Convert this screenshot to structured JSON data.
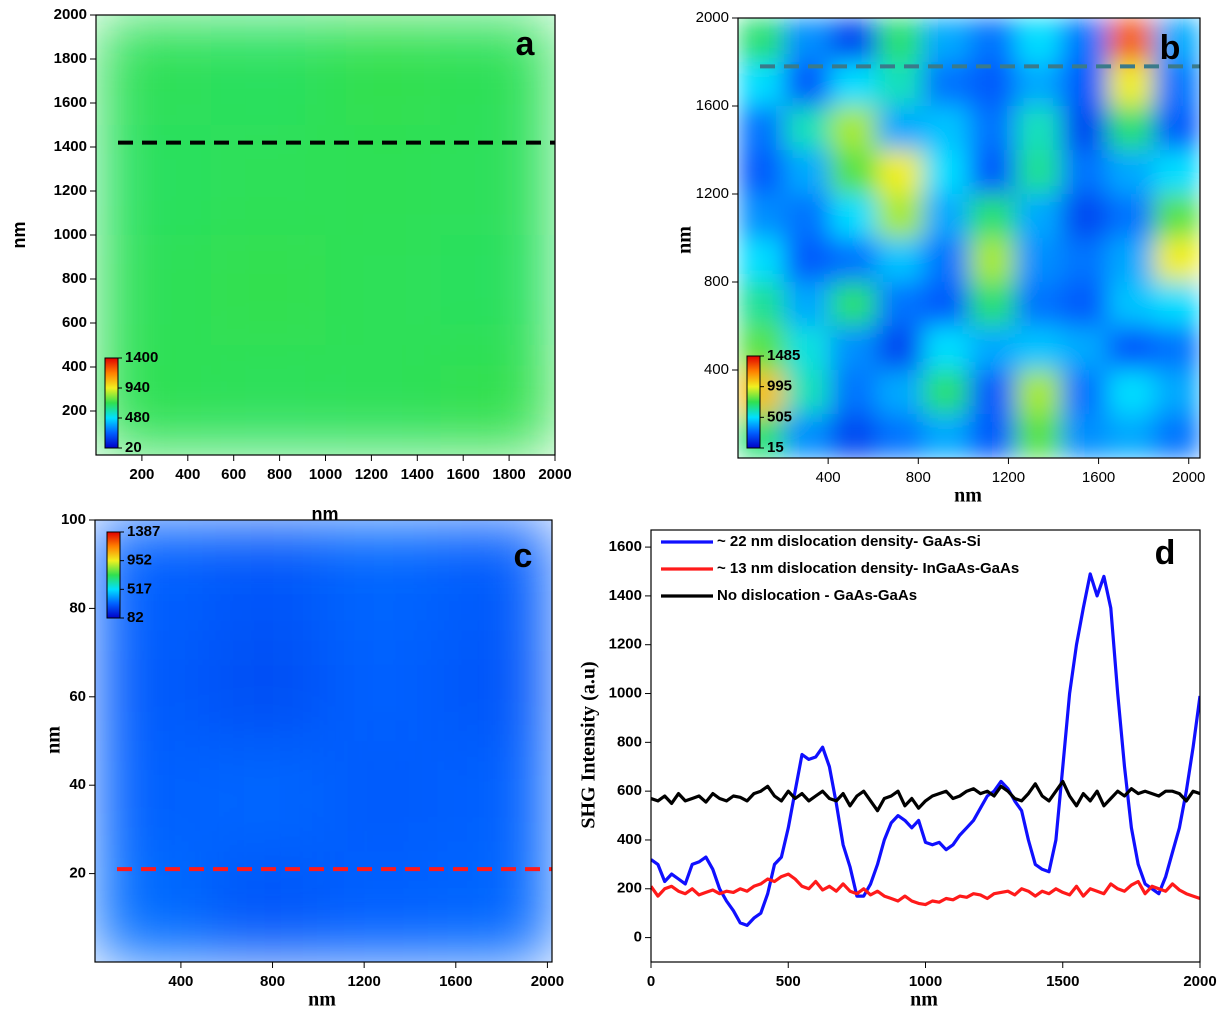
{
  "chart_data": [
    {
      "type": "heatmap",
      "label": "a",
      "xlabel": "nm",
      "ylabel": "nm",
      "xlim": [
        0,
        2000
      ],
      "ylim": [
        0,
        2000
      ],
      "xticks": [
        200,
        400,
        600,
        800,
        1000,
        1200,
        1400,
        1600,
        1800,
        2000
      ],
      "yticks": [
        200,
        400,
        600,
        800,
        1000,
        1200,
        1400,
        1600,
        1800,
        2000
      ],
      "clim": [
        20,
        1400
      ],
      "cticks": [
        20,
        480,
        940,
        1400
      ],
      "colormap": [
        "#0000c8",
        "#0060ff",
        "#00e0ff",
        "#30e050",
        "#f0f020",
        "#ff8000",
        "#e00000"
      ],
      "z": [
        [
          700,
          690,
          710,
          700
        ],
        [
          690,
          700,
          705,
          695
        ],
        [
          700,
          710,
          700,
          690
        ],
        [
          705,
          695,
          700,
          710
        ]
      ],
      "hline": {
        "y": 1420,
        "color": "#000000"
      }
    },
    {
      "type": "heatmap",
      "label": "b",
      "xlabel": "nm",
      "ylabel": "nm",
      "xlim": [
        0,
        2050
      ],
      "ylim": [
        0,
        2000
      ],
      "xticks": [
        400,
        800,
        1200,
        1600,
        2000
      ],
      "yticks": [
        400,
        800,
        1200,
        1600,
        2000
      ],
      "clim": [
        15,
        1485
      ],
      "cticks": [
        15,
        505,
        995,
        1485
      ],
      "colormap": [
        "#0000c8",
        "#0060ff",
        "#00e0ff",
        "#30e050",
        "#f0f020",
        "#ff8000",
        "#e00000"
      ],
      "z": [
        [
          700,
          350,
          200,
          700,
          400,
          300,
          500,
          300,
          1300,
          400
        ],
        [
          500,
          250,
          500,
          600,
          300,
          250,
          400,
          250,
          1000,
          300
        ],
        [
          300,
          600,
          900,
          400,
          450,
          300,
          600,
          200,
          700,
          250
        ],
        [
          250,
          400,
          800,
          1000,
          500,
          250,
          650,
          300,
          400,
          500
        ],
        [
          350,
          300,
          500,
          900,
          400,
          700,
          400,
          200,
          300,
          800
        ],
        [
          500,
          250,
          300,
          450,
          300,
          900,
          350,
          300,
          400,
          1000
        ],
        [
          650,
          400,
          700,
          300,
          250,
          700,
          300,
          250,
          450,
          500
        ],
        [
          800,
          550,
          350,
          200,
          500,
          400,
          450,
          400,
          250,
          300
        ],
        [
          1100,
          600,
          300,
          400,
          700,
          250,
          900,
          300,
          500,
          400
        ],
        [
          700,
          350,
          200,
          300,
          400,
          250,
          800,
          350,
          400,
          300
        ]
      ],
      "hline": {
        "y": 1780,
        "color": "#3a7a8a"
      }
    },
    {
      "type": "heatmap",
      "label": "c",
      "xlabel": "nm",
      "ylabel": "nm",
      "xlim": [
        25,
        2020
      ],
      "ylim": [
        0,
        100
      ],
      "xticks": [
        400,
        800,
        1200,
        1600,
        2000
      ],
      "yticks": [
        20,
        40,
        60,
        80,
        100
      ],
      "clim": [
        82,
        1387
      ],
      "cticks": [
        82,
        517,
        952,
        1387
      ],
      "colormap": [
        "#0000c8",
        "#0060ff",
        "#00e0ff",
        "#30e050",
        "#f0f020",
        "#ff8000",
        "#e00000"
      ],
      "z": [
        [
          300,
          280,
          310,
          290
        ],
        [
          290,
          260,
          300,
          280
        ],
        [
          300,
          310,
          290,
          300
        ],
        [
          320,
          280,
          300,
          310
        ]
      ],
      "hline": {
        "y": 21,
        "color": "#ff1a1a"
      }
    },
    {
      "type": "line",
      "label": "d",
      "xlabel": "nm",
      "ylabel": "SHG Intensity (a.u)",
      "xlim": [
        0,
        2000
      ],
      "ylim": [
        -100,
        1670
      ],
      "xticks": [
        0,
        500,
        1000,
        1500,
        2000
      ],
      "yticks": [
        0,
        200,
        400,
        600,
        800,
        1000,
        1200,
        1400,
        1600
      ],
      "legend": "upper left",
      "x": [
        0,
        25,
        50,
        75,
        100,
        125,
        150,
        175,
        200,
        225,
        250,
        275,
        300,
        325,
        350,
        375,
        400,
        425,
        450,
        475,
        500,
        525,
        550,
        575,
        600,
        625,
        650,
        675,
        700,
        725,
        750,
        775,
        800,
        825,
        850,
        875,
        900,
        925,
        950,
        975,
        1000,
        1025,
        1050,
        1075,
        1100,
        1125,
        1150,
        1175,
        1200,
        1225,
        1250,
        1275,
        1300,
        1325,
        1350,
        1375,
        1400,
        1425,
        1450,
        1475,
        1500,
        1525,
        1550,
        1575,
        1600,
        1625,
        1650,
        1675,
        1700,
        1725,
        1750,
        1775,
        1800,
        1825,
        1850,
        1875,
        1900,
        1925,
        1950,
        1975,
        2000
      ],
      "series": [
        {
          "name": "~ 22 nm dislocation density- GaAs-Si",
          "color": "#1010ff",
          "values": [
            320,
            300,
            230,
            260,
            240,
            220,
            300,
            310,
            330,
            280,
            200,
            150,
            110,
            60,
            50,
            80,
            100,
            180,
            300,
            330,
            450,
            600,
            750,
            730,
            740,
            780,
            700,
            550,
            380,
            290,
            170,
            170,
            220,
            300,
            400,
            470,
            500,
            480,
            450,
            480,
            390,
            380,
            390,
            360,
            380,
            420,
            450,
            480,
            530,
            580,
            600,
            640,
            610,
            560,
            520,
            400,
            300,
            280,
            270,
            400,
            700,
            1000,
            1200,
            1350,
            1490,
            1400,
            1480,
            1350,
            1000,
            700,
            450,
            300,
            220,
            200,
            180,
            250,
            350,
            450,
            600,
            780,
            990
          ]
        },
        {
          "name": "~ 13 nm  dislocation density- InGaAs-GaAs",
          "color": "#ff1a1a",
          "values": [
            210,
            170,
            200,
            210,
            190,
            180,
            200,
            175,
            185,
            195,
            180,
            190,
            185,
            200,
            190,
            210,
            220,
            240,
            230,
            250,
            260,
            240,
            210,
            200,
            230,
            195,
            210,
            190,
            220,
            190,
            180,
            200,
            175,
            190,
            170,
            160,
            150,
            170,
            150,
            140,
            135,
            150,
            145,
            160,
            155,
            170,
            165,
            180,
            175,
            160,
            180,
            185,
            190,
            175,
            200,
            190,
            170,
            190,
            180,
            200,
            185,
            175,
            210,
            170,
            200,
            190,
            180,
            220,
            200,
            190,
            215,
            230,
            180,
            210,
            200,
            190,
            220,
            195,
            180,
            170,
            160
          ]
        },
        {
          "name": "No dislocation - GaAs-GaAs",
          "color": "#000000",
          "values": [
            570,
            560,
            580,
            550,
            590,
            560,
            570,
            580,
            555,
            590,
            570,
            560,
            580,
            575,
            560,
            590,
            600,
            620,
            580,
            560,
            600,
            570,
            590,
            560,
            580,
            600,
            570,
            560,
            590,
            540,
            580,
            600,
            560,
            520,
            570,
            580,
            600,
            540,
            570,
            530,
            560,
            580,
            590,
            600,
            570,
            580,
            600,
            610,
            590,
            600,
            580,
            620,
            600,
            570,
            560,
            590,
            630,
            580,
            560,
            600,
            640,
            580,
            540,
            590,
            560,
            600,
            540,
            570,
            600,
            580,
            610,
            590,
            600,
            590,
            580,
            600,
            600,
            590,
            560,
            600,
            590
          ]
        }
      ]
    }
  ]
}
